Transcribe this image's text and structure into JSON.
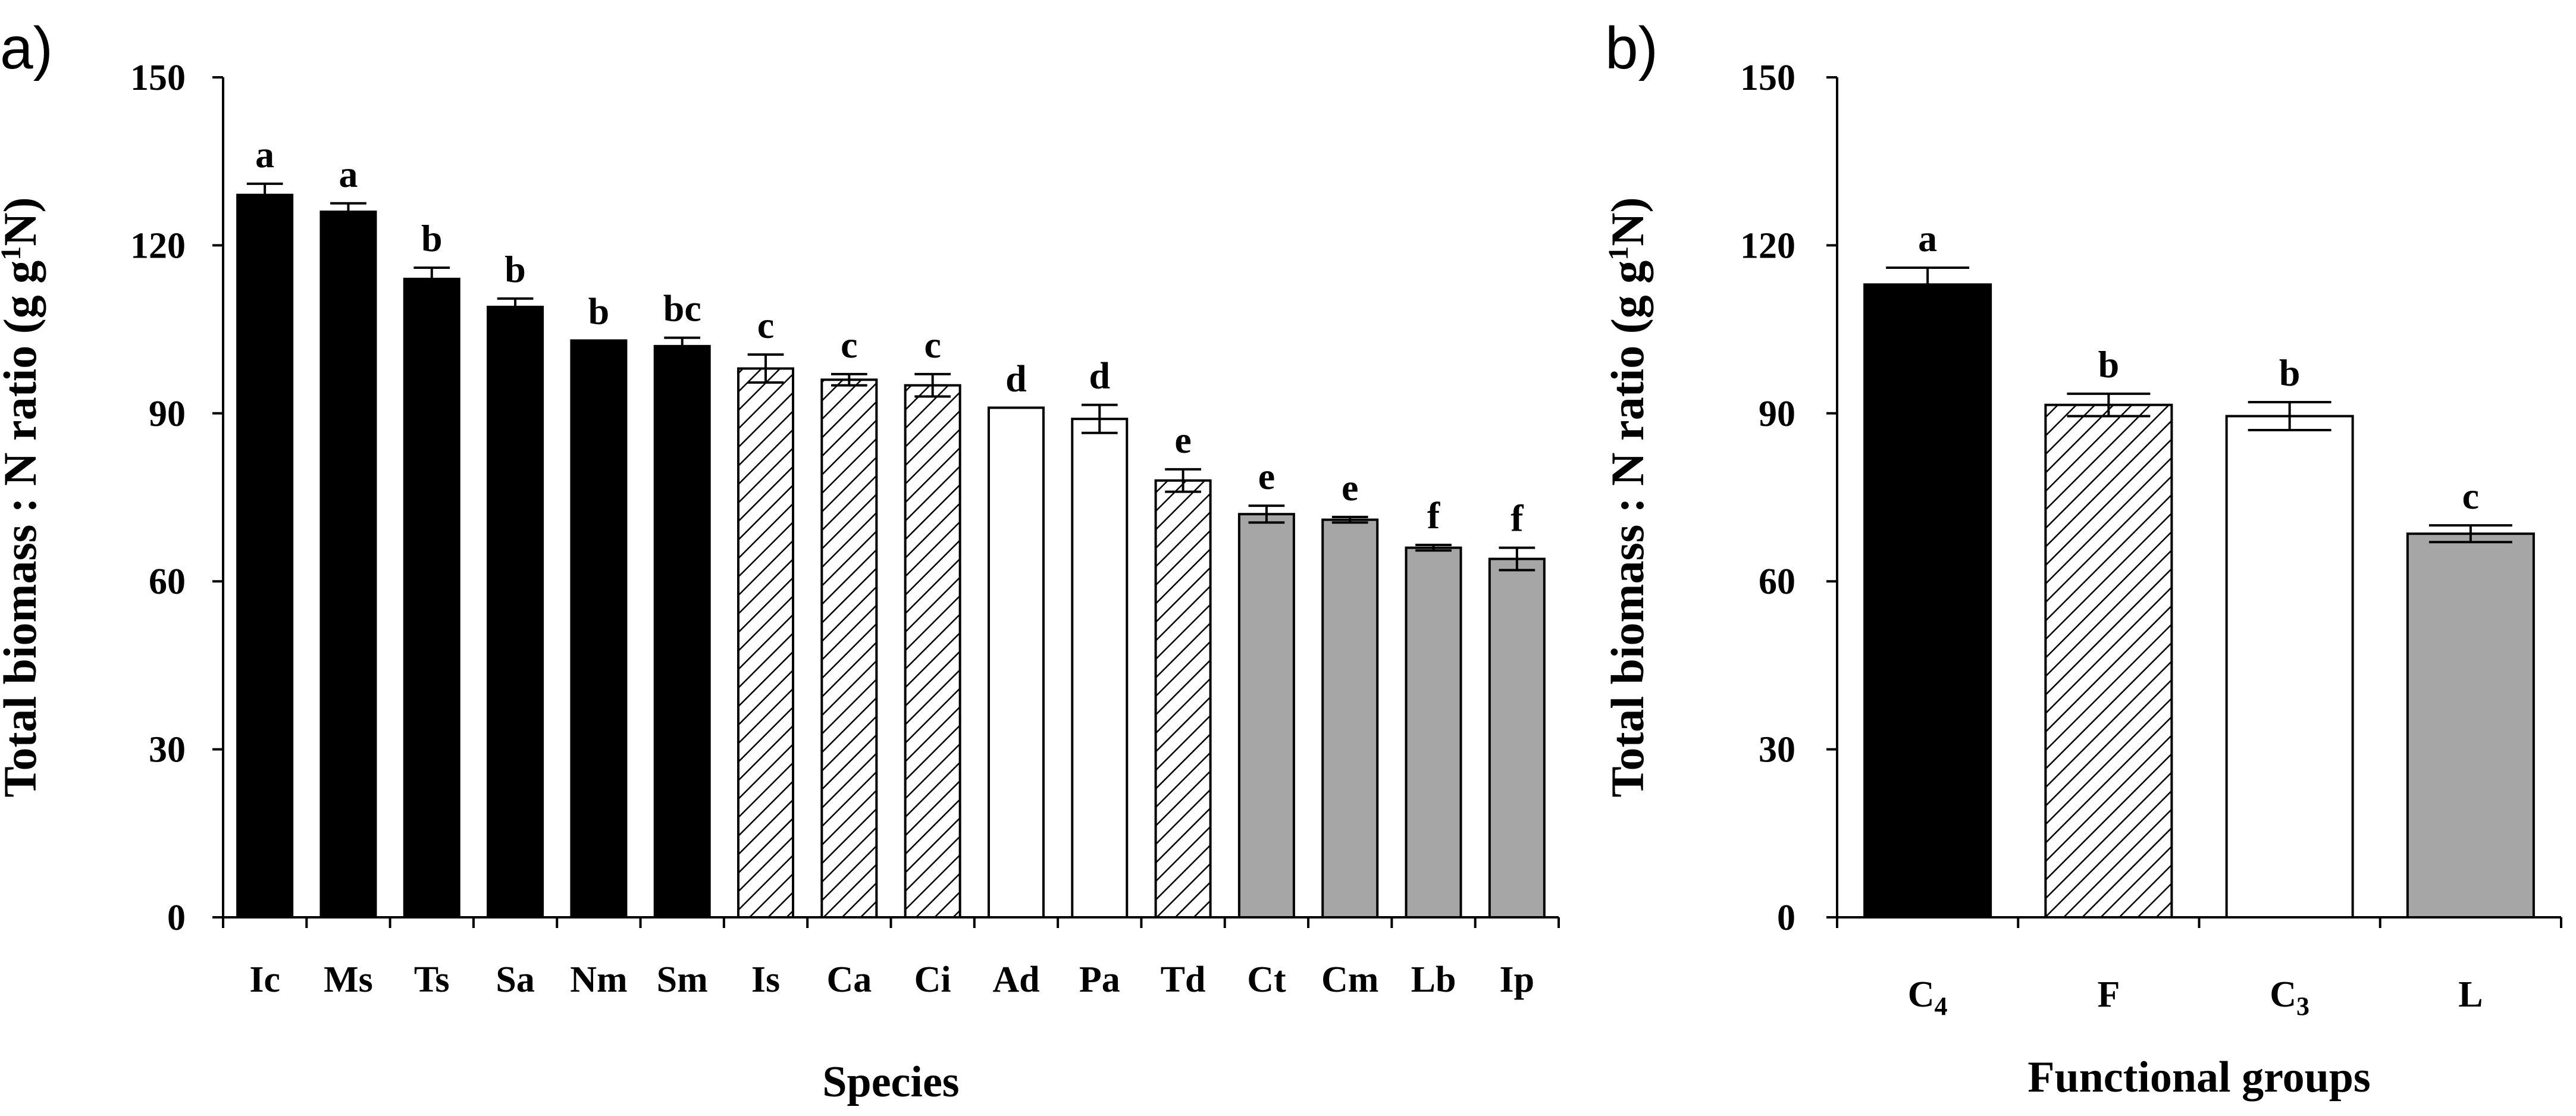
{
  "panels": {
    "a": {
      "label": "a)"
    },
    "b": {
      "label": "b)"
    }
  },
  "colors": {
    "C4": "#000000",
    "F": "hatched",
    "C3": "#ffffff",
    "L": "#a6a6a6"
  },
  "chart_data": [
    {
      "type": "bar",
      "title": "",
      "panel": "a)",
      "xlabel": "Species",
      "ylabel": "Total biomass : N ratio (g g-1N)",
      "ylim": [
        0,
        150
      ],
      "yticks": [
        0,
        30,
        60,
        90,
        120,
        150
      ],
      "grid": false,
      "categories": [
        "Ic",
        "Ms",
        "Ts",
        "Sa",
        "Nm",
        "Sm",
        "Is",
        "Ca",
        "Ci",
        "Ad",
        "Pa",
        "Td",
        "Ct",
        "Cm",
        "Lb",
        "Ip"
      ],
      "values": [
        129,
        126,
        114,
        109,
        103,
        102,
        98,
        96,
        95,
        91,
        89,
        78,
        72,
        71,
        66,
        64
      ],
      "errors": [
        2,
        1.5,
        2,
        1.5,
        0,
        1.5,
        2.5,
        1,
        2,
        0,
        2.5,
        2,
        1.5,
        0.5,
        0.5,
        2
      ],
      "groups": [
        "C4",
        "C4",
        "C4",
        "C4",
        "C4",
        "C4",
        "F",
        "F",
        "F",
        "C3",
        "C3",
        "F",
        "L",
        "L",
        "L",
        "L"
      ],
      "letters": [
        "a",
        "a",
        "b",
        "b",
        "b",
        "bc",
        "c",
        "c",
        "c",
        "d",
        "d",
        "e",
        "e",
        "e",
        "f",
        "f"
      ]
    },
    {
      "type": "bar",
      "title": "",
      "panel": "b)",
      "xlabel": "Functional groups",
      "ylabel": "Total biomass : N ratio (g g-1N)",
      "ylim": [
        0,
        150
      ],
      "yticks": [
        0,
        30,
        60,
        90,
        120,
        150
      ],
      "grid": false,
      "categories": [
        "C4",
        "F",
        "C3",
        "L"
      ],
      "category_display": [
        {
          "base": "C",
          "sub": "4"
        },
        {
          "base": "F",
          "sub": ""
        },
        {
          "base": "C",
          "sub": "3"
        },
        {
          "base": "L",
          "sub": ""
        }
      ],
      "values": [
        113,
        91.5,
        89.5,
        68.5
      ],
      "errors": [
        3,
        2,
        2.5,
        1.5
      ],
      "groups": [
        "C4",
        "F",
        "C3",
        "L"
      ],
      "letters": [
        "a",
        "b",
        "b",
        "c"
      ]
    }
  ]
}
